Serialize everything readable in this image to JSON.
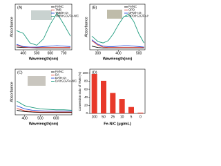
{
  "chart_data": [
    {
      "type": "line",
      "panel_label": "(A)",
      "xlabel": "Wavelength(nm)",
      "ylabel": "Absorbance",
      "x": [
        350,
        400,
        450,
        500,
        550,
        600,
        650,
        700,
        750
      ],
      "xlim": [
        340,
        760
      ],
      "xticks": [
        400,
        500,
        600,
        700
      ],
      "ylim": [
        0,
        1
      ],
      "legend": "upper right",
      "series": [
        {
          "name": "Fe/NC",
          "color": "#000000",
          "values": [
            0.06,
            0.05,
            0.05,
            0.04,
            0.04,
            0.04,
            0.04,
            0.04,
            0.04
          ]
        },
        {
          "name": "TMB",
          "color": "#e8392a",
          "values": [
            0.1,
            0.06,
            0.05,
            0.05,
            0.05,
            0.05,
            0.05,
            0.05,
            0.05
          ]
        },
        {
          "name": "TMB/H₂O₂",
          "color": "#2a4fd8",
          "values": [
            0.12,
            0.07,
            0.06,
            0.06,
            0.07,
            0.08,
            0.09,
            0.08,
            0.07
          ]
        },
        {
          "name": "TMB/H₂O₂/Fe-N/C",
          "color": "#1e9b7e",
          "values": [
            0.42,
            0.36,
            0.15,
            0.1,
            0.24,
            0.56,
            0.8,
            0.56,
            0.3
          ]
        }
      ]
    },
    {
      "type": "line",
      "panel_label": "(B)",
      "xlabel": "Wavelength(nm)",
      "ylabel": "Absorbance",
      "x": [
        270,
        300,
        325,
        350,
        375,
        400,
        425,
        450,
        475,
        500,
        525
      ],
      "xlim": [
        260,
        530
      ],
      "xticks": [
        300,
        400,
        500
      ],
      "ylim": [
        0,
        1
      ],
      "legend": "upper right",
      "series": [
        {
          "name": "Fe/NC",
          "color": "#000000",
          "values": [
            0.08,
            0.05,
            0.04,
            0.04,
            0.04,
            0.04,
            0.04,
            0.04,
            0.04,
            0.04,
            0.04
          ]
        },
        {
          "name": "OPD",
          "color": "#e8392a",
          "values": [
            0.2,
            0.1,
            0.06,
            0.05,
            0.05,
            0.05,
            0.05,
            0.05,
            0.05,
            0.05,
            0.05
          ]
        },
        {
          "name": "OPD/H₂O₂",
          "color": "#2a4fd8",
          "values": [
            0.22,
            0.12,
            0.08,
            0.07,
            0.07,
            0.08,
            0.09,
            0.09,
            0.08,
            0.07,
            0.06
          ]
        },
        {
          "name": "OPD/H₂O₂/Fe-N/C",
          "color": "#1e9b7e",
          "values": [
            0.3,
            0.18,
            0.15,
            0.2,
            0.35,
            0.55,
            0.72,
            0.78,
            0.62,
            0.35,
            0.15
          ]
        }
      ]
    },
    {
      "type": "line",
      "panel_label": "(C)",
      "xlabel": "Wavelength(nm)",
      "ylabel": "Absorbance",
      "x": [
        350,
        400,
        450,
        500,
        550,
        600,
        650,
        700
      ],
      "xlim": [
        340,
        700
      ],
      "xticks": [
        400,
        500,
        600
      ],
      "ylim": [
        0,
        1
      ],
      "legend": "upper right",
      "series": [
        {
          "name": "Fe/NC",
          "color": "#000000",
          "values": [
            0.1,
            0.07,
            0.06,
            0.05,
            0.05,
            0.05,
            0.05,
            0.05
          ]
        },
        {
          "name": "DA",
          "color": "#e8392a",
          "values": [
            0.14,
            0.09,
            0.07,
            0.06,
            0.06,
            0.06,
            0.06,
            0.06
          ]
        },
        {
          "name": "DA/H₂O₂",
          "color": "#2a4fd8",
          "values": [
            0.2,
            0.13,
            0.1,
            0.09,
            0.08,
            0.08,
            0.08,
            0.08
          ]
        },
        {
          "name": "DA/H₂O₂/Fe-N/C",
          "color": "#1e9b7e",
          "values": [
            0.3,
            0.2,
            0.16,
            0.13,
            0.12,
            0.11,
            0.11,
            0.1
          ]
        }
      ]
    },
    {
      "type": "bar",
      "panel_label": "(D)",
      "xlabel": "Fe-N/C (μg/mL)",
      "ylabel": "Conversion ratio of TMB (%)",
      "categories": [
        "100",
        "50",
        "25",
        "10",
        "5",
        "0"
      ],
      "values": [
        98,
        81,
        51,
        36,
        16,
        2
      ],
      "color": "#e8392a",
      "ylim": [
        0,
        110
      ],
      "yticks": [
        0,
        20,
        40,
        60,
        80,
        100
      ]
    }
  ]
}
